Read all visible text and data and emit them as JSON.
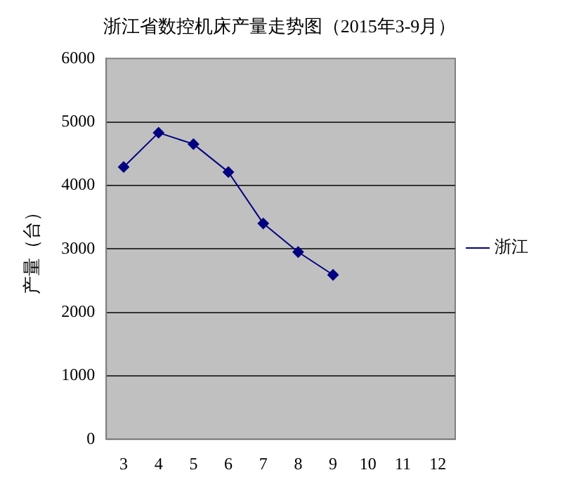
{
  "chart_data": {
    "type": "line",
    "title": "浙江省数控机床产量走势图（2015年3-9月）",
    "ylabel": "产量（台）",
    "categories": [
      "3",
      "4",
      "5",
      "6",
      "7",
      "8",
      "9",
      "10",
      "11",
      "12"
    ],
    "series": [
      {
        "name": "浙江",
        "color": "#000080",
        "values": [
          4290,
          4830,
          4650,
          4210,
          3400,
          2950,
          2590,
          null,
          null,
          null
        ]
      }
    ],
    "ylim": [
      0,
      6000
    ],
    "yticks": [
      0,
      1000,
      2000,
      3000,
      4000,
      5000,
      6000
    ],
    "grid": "y",
    "legend": "right",
    "marker": "diamond",
    "line_style": "solid"
  }
}
